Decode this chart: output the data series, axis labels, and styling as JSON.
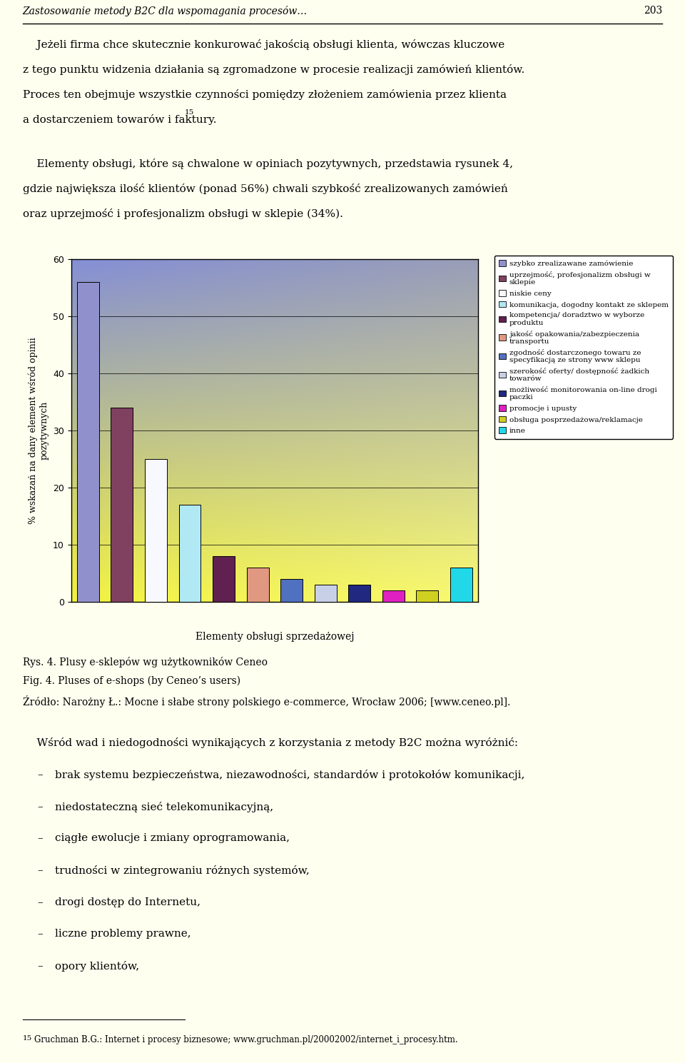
{
  "values": [
    56,
    34,
    25,
    17,
    8,
    6,
    4,
    3,
    3,
    2,
    2,
    6
  ],
  "bar_colors": [
    "#9090cc",
    "#804060",
    "#f8f8ff",
    "#b0e8f4",
    "#602050",
    "#e09880",
    "#5070c0",
    "#c8d0e8",
    "#202880",
    "#e020c0",
    "#d0d020",
    "#20d8e8"
  ],
  "legend_labels": [
    "szybko zrealizawane zamówienie",
    "uprzejmość, profesjonalizm obsługi w\nsklepie",
    "niskie ceny",
    "komunikacja, dogodny kontakt ze sklepem",
    "kompetencja/ doradztwo w wyborze\nproduktu",
    "jakość opakowania/zabezpieczenia\ntransportu",
    "zgodność dostarczonego towaru ze\nspecyfikacją ze strony www sklepu",
    "szerokość oferty/ dostępność żadkich\ntowarów",
    "możliwość monitorowania on-line drogi\npaczki",
    "promocje i upusty",
    "obsługa posprzedażowa/reklamacje",
    "inne"
  ],
  "ylabel": "% wskazań na dany element wśród opinii\npozytywnych",
  "xlabel": "Elementy obsługi sprzedażowej",
  "ylim": [
    0,
    60
  ],
  "yticks": [
    0,
    10,
    20,
    30,
    40,
    50,
    60
  ],
  "bg_color": "#fffff0",
  "header_text": "Zastosowanie metody B2C dla wspomagania procesów…",
  "page_num": "203",
  "body1_lines": [
    "    Jeżeli firma chce skutecznie konkurować jakością obsługi klienta, wówczas kluczowe",
    "z tego punktu widzenia działania są zgromadzone w procesie realizacji zamówień klientów.",
    "Proces ten obejmuje wszystkie czynności pomiędzy złożeniem zamówienia przez klienta",
    "a dostarczeniem towarów i faktury."
  ],
  "sup15_inline": "15",
  "body2_lines": [
    "    Elementy obsługi, które są chwalone w opiniach pozytywnych, przedstawia rysunek 4,",
    "gdzie największa ilość klientów (ponad 56%) chwali szybkość zrealizowanych zamówień",
    "oraz uprzejmość i profesjonalizm obsługi w sklepie (34%)."
  ],
  "caption_lines": [
    "Rys. 4. Plusy e-sklepów wg użytkowników Ceneo",
    "Fig. 4. Pluses of e-shops (by Ceneo’s users)",
    "Źródło: Narożny Ł.: Mocne i słabe strony polskiego e-commerce, Wrocław 2006; [www.ceneo.pl]."
  ],
  "body3": "    Wśród wad i niedogodności wynikających z korzystania z metody B2C można wyróżnić:",
  "bullets": [
    "brak systemu bezpieczeństwa, niezawodności, standardów i protokołów komunikacji,",
    "niedostateczną sieć telekomunikacyjną,",
    "ciągłe ewolucje i zmiany oprogramowania,",
    "trudności w zintegrowaniu różnych systemów,",
    "drogi dostęp do Internetu,",
    "liczne problemy prawne,",
    "opory klientów,"
  ],
  "footnote": "Gruchman B.G.: Internet i procesy biznesowe; www.gruchman.pl/20002002/internet_i_procesy.htm."
}
